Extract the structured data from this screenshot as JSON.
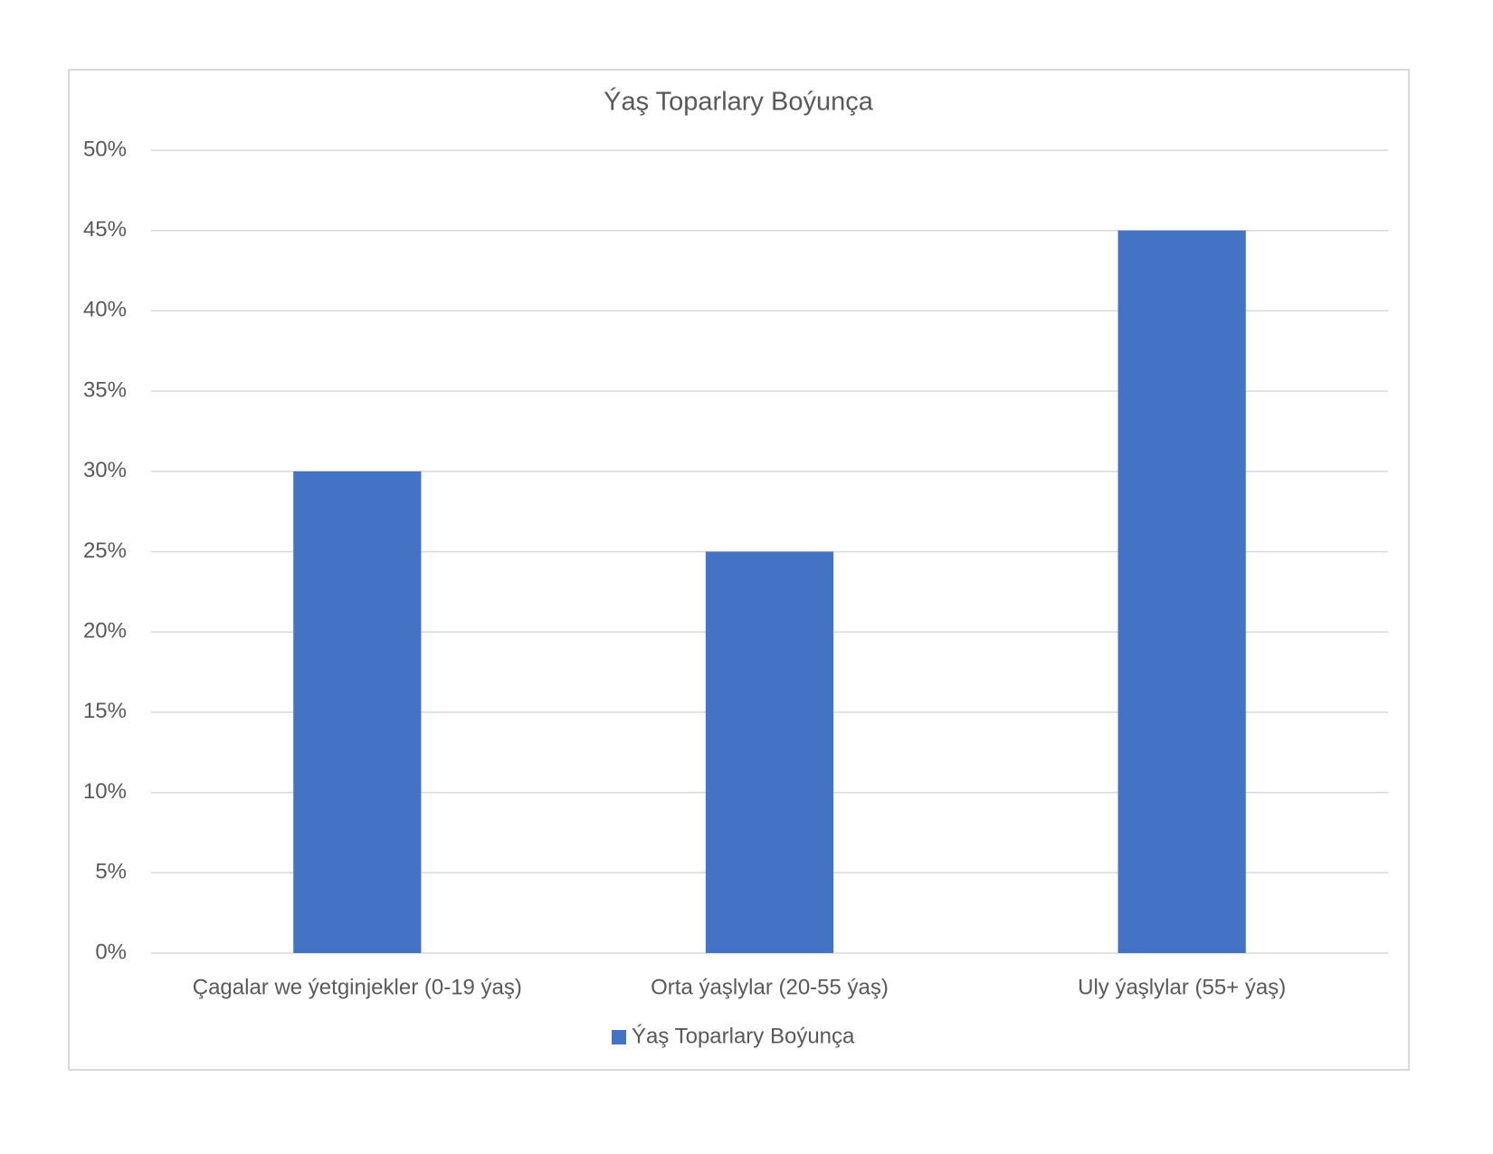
{
  "chart_data": {
    "type": "bar",
    "title": "Ýaş Toparlary Boýunça",
    "categories": [
      "Çagalar we ýetginjekler (0-19 ýaş)",
      "Orta ýaşlylar (20-55 ýaş)",
      "Uly ýaşlylar (55+ ýaş)"
    ],
    "series": [
      {
        "name": "Ýaş Toparlary Boýunça",
        "color": "#4472c4",
        "values": [
          30,
          25,
          45
        ]
      }
    ],
    "ylim": [
      0,
      50
    ],
    "yticks": [
      {
        "value": 0,
        "label": "0%"
      },
      {
        "value": 5,
        "label": "5%"
      },
      {
        "value": 10,
        "label": "10%"
      },
      {
        "value": 15,
        "label": "15%"
      },
      {
        "value": 20,
        "label": "20%"
      },
      {
        "value": 25,
        "label": "25%"
      },
      {
        "value": 30,
        "label": "30%"
      },
      {
        "value": 35,
        "label": "35%"
      },
      {
        "value": 40,
        "label": "40%"
      },
      {
        "value": 45,
        "label": "45%"
      },
      {
        "value": 50,
        "label": "50%"
      }
    ],
    "grid": true,
    "legend": "bottom"
  }
}
